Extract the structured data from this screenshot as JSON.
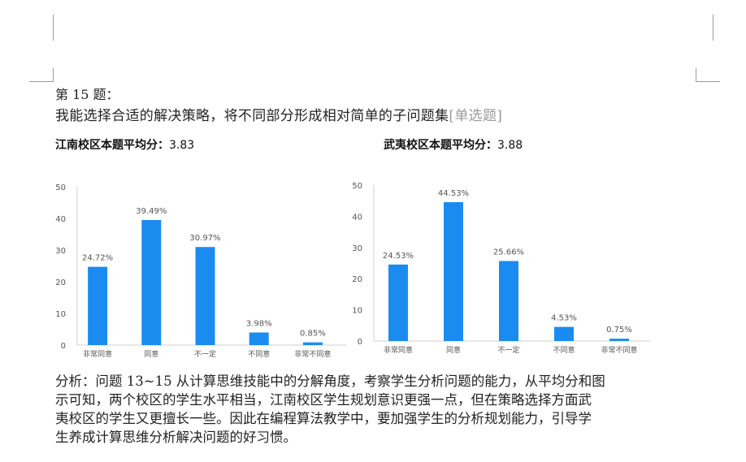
{
  "question": {
    "title": "第 15 题：",
    "text": "我能选择合适的解决策略，将不同部分形成相对简单的子问题集",
    "tag": "[单选题]"
  },
  "averages": {
    "left_label": "江南校区本题平均分：",
    "left_value": "3.83",
    "right_label": "武夷校区本题平均分：",
    "right_value": "3.88"
  },
  "analysis": {
    "lines": [
      "分析：问题 13~15 从计算思维技能中的分解角度，考察学生分析问题的能力，从平均分和图",
      "示可知，两个校区的学生水平相当，江南校区学生规划意识更强一点，但在策略选择方面武",
      "夷校区的学生又更擅长一些。因此在编程算法教学中，要加强学生的分析规划能力，引导学",
      "生养成计算思维分析解决问题的好习惯。"
    ]
  },
  "colors": {
    "bar": "#1a8cf0",
    "axis": "#cfcfcf",
    "label": "#555555"
  },
  "chart_data": [
    {
      "type": "bar",
      "categories": [
        "非常同意",
        "同意",
        "不一定",
        "不同意",
        "非常不同意"
      ],
      "values": [
        24.72,
        39.49,
        30.97,
        3.98,
        0.85
      ],
      "data_labels": [
        "24.72%",
        "39.49%",
        "30.97%",
        "3.98%",
        "0.85%"
      ],
      "ylim": [
        0,
        50
      ],
      "yticks": [
        0,
        10,
        20,
        30,
        40,
        50
      ],
      "grid": false
    },
    {
      "type": "bar",
      "categories": [
        "非常同意",
        "同意",
        "不一定",
        "不同意",
        "非常不同意"
      ],
      "values": [
        24.53,
        44.53,
        25.66,
        4.53,
        0.75
      ],
      "data_labels": [
        "24.53%",
        "44.53%",
        "25.66%",
        "4.53%",
        "0.75%"
      ],
      "ylim": [
        0,
        50
      ],
      "yticks": [
        0,
        10,
        20,
        30,
        40,
        50
      ],
      "grid": false
    }
  ]
}
